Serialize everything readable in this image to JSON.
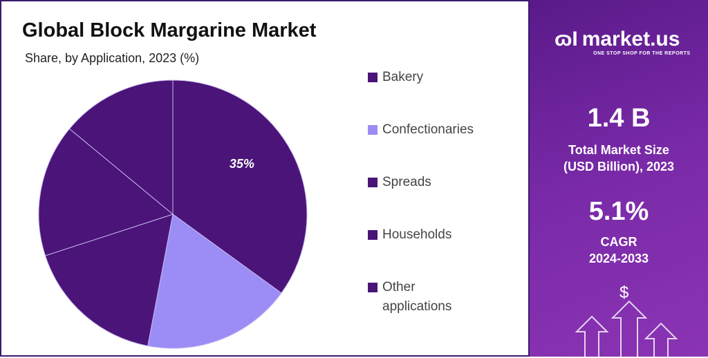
{
  "header": {
    "title": "Global Block Margarine Market",
    "subtitle": "Share, by Application, 2023 (%)"
  },
  "chart_data": {
    "type": "pie",
    "title": "Global Block Margarine Market",
    "subtitle": "Share, by Application, 2023 (%)",
    "categories": [
      "Bakery",
      "Confectionaries",
      "Spreads",
      "Households",
      "Other applications"
    ],
    "values": [
      35,
      18,
      17,
      16,
      14
    ],
    "colors": [
      "#4a1478",
      "#9b8df5",
      "#4a1478",
      "#4a1478",
      "#4a1478"
    ],
    "data_labels": [
      "35%",
      "",
      "",
      "",
      ""
    ],
    "legend_position": "right"
  },
  "legend": {
    "items": [
      "Bakery",
      "Confectionaries",
      "Spreads",
      "Households",
      "Other applications"
    ]
  },
  "sidebar": {
    "logo": "market.us",
    "tagline": "ONE STOP SHOP FOR THE REPORTS",
    "market_size": "1.4 B",
    "market_size_label_1": "Total Market Size",
    "market_size_label_2": "(USD Billion), 2023",
    "cagr": "5.1%",
    "cagr_label": "CAGR",
    "cagr_period": "2024-2033",
    "dollar_icon": "$"
  }
}
